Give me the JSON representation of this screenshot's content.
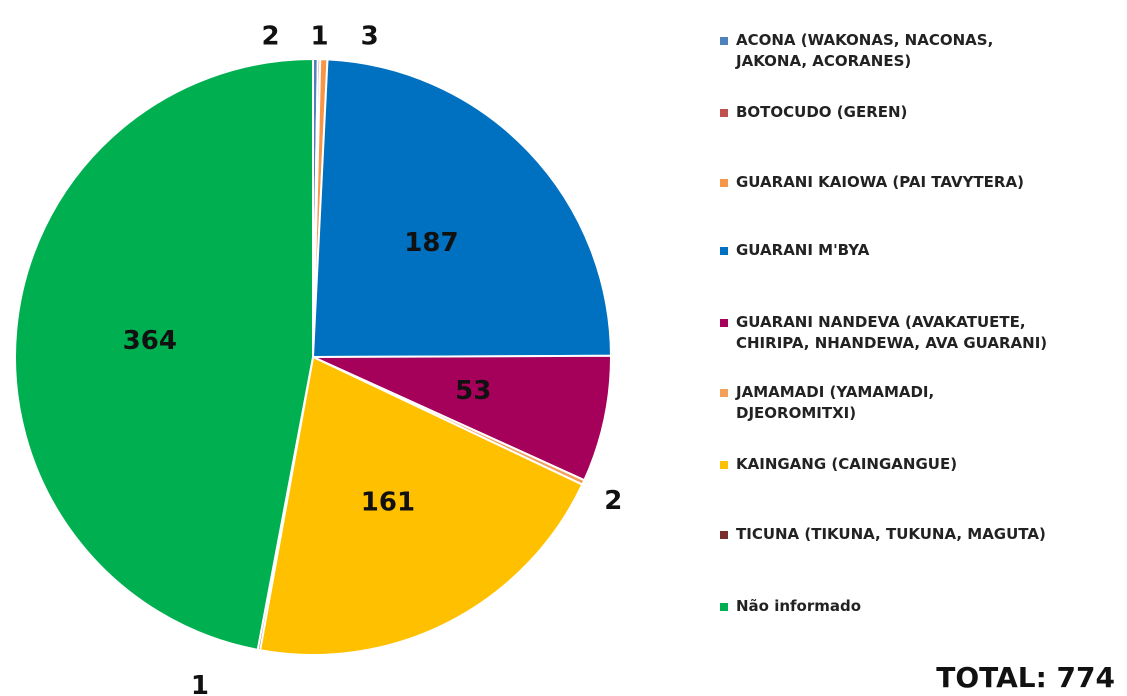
{
  "chart_data": {
    "type": "pie",
    "categories": [
      "ACONA (WAKONAS, NACONAS, JAKONA, ACORANES)",
      "BOTOCUDO (GEREN)",
      "GUARANI KAIOWA (PAI TAVYTERA)",
      "GUARANI M'BYA",
      "GUARANI NANDEVA (AVAKATUETE, CHIRIPA, NHANDEWA, AVA GUARANI)",
      "JAMAMADI (YAMAMADI, DJEOROMITXI)",
      "KAINGANG (CAINGANGUE)",
      "TICUNA (TIKUNA, TUKUNA, MAGUTA)",
      "Não informado"
    ],
    "values": [
      2,
      1,
      3,
      187,
      53,
      2,
      161,
      1,
      364
    ],
    "colors": [
      "#4f81bd",
      "#c0504d",
      "#f79646",
      "#0070c0",
      "#a5005a",
      "#f4a05a",
      "#ffc000",
      "#7b2c2c",
      "#00b050"
    ],
    "legend": "right",
    "annotation": "TOTAL: 774"
  }
}
